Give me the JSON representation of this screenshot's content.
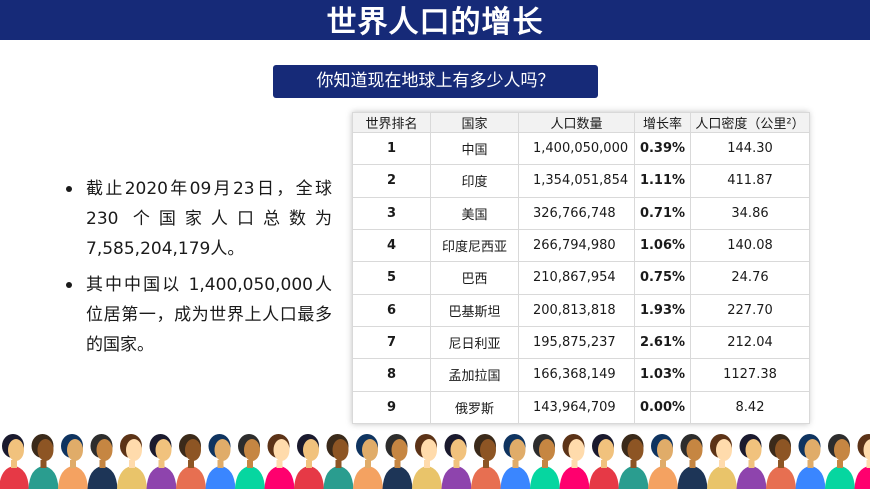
{
  "page": {
    "title": "世界人口的增长"
  },
  "question": "你知道现在地球上有多少人吗？",
  "bullets": [
    "截止2020年09月23日，全球230 个国家人口总数为7,585,204,179人。",
    "其中中国以 1,400,050,000人位居第一，成为世界上人口最多的国家。"
  ],
  "table": {
    "headers": [
      "世界排名",
      "国家",
      "人口数量",
      "增长率",
      "人口密度（公里²）"
    ],
    "rows": [
      {
        "rank": "1",
        "country": "中国",
        "population": "1,400,050,000",
        "growth": "0.39%",
        "density": "144.30"
      },
      {
        "rank": "2",
        "country": "印度",
        "population": "1,354,051,854",
        "growth": "1.11%",
        "density": "411.87"
      },
      {
        "rank": "3",
        "country": "美国",
        "population": "326,766,748",
        "growth": "0.71%",
        "density": "34.86"
      },
      {
        "rank": "4",
        "country": "印度尼西亚",
        "population": "266,794,980",
        "growth": "1.06%",
        "density": "140.08"
      },
      {
        "rank": "5",
        "country": "巴西",
        "population": "210,867,954",
        "growth": "0.75%",
        "density": "24.76"
      },
      {
        "rank": "6",
        "country": "巴基斯坦",
        "population": "200,813,818",
        "growth": "1.93%",
        "density": "227.70"
      },
      {
        "rank": "7",
        "country": "尼日利亚",
        "population": "195,875,237",
        "growth": "2.61%",
        "density": "212.04"
      },
      {
        "rank": "8",
        "country": "孟加拉国",
        "population": "166,368,149",
        "growth": "1.03%",
        "density": "1127.38"
      },
      {
        "rank": "9",
        "country": "俄罗斯",
        "population": "143,964,709",
        "growth": "0.00%",
        "density": "8.42"
      }
    ]
  },
  "colors": {
    "navy": "#162a78",
    "people_shirts": [
      "#e63946",
      "#2a9d8f",
      "#f4a261",
      "#1d3557",
      "#e9c46a",
      "#8e44ad",
      "#e76f51",
      "#3a86ff",
      "#06d6a0",
      "#ff006e"
    ]
  }
}
